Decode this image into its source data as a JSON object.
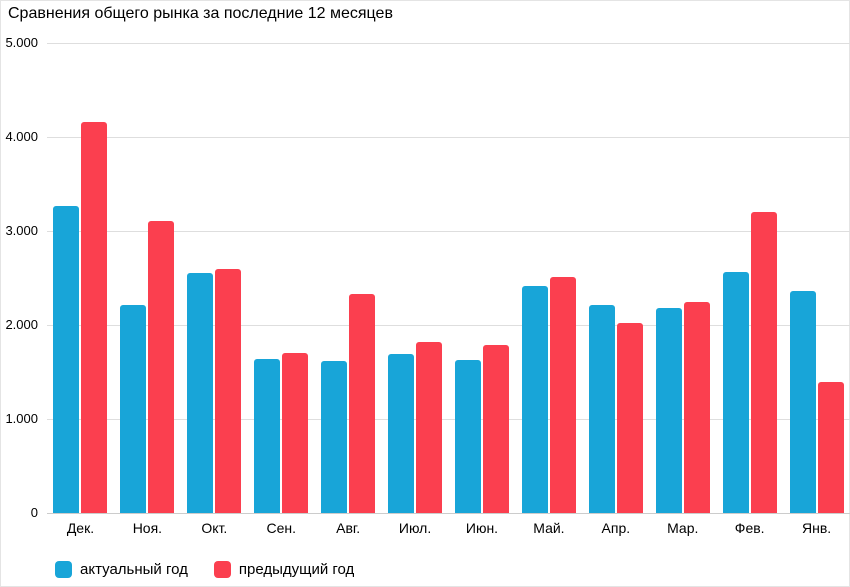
{
  "colors": {
    "current_year": "#18a5d8",
    "previous_year": "#fb3f4f",
    "gridline": "#dedede",
    "axis_line": "#cccccc",
    "text": "#000000"
  },
  "chart_data": {
    "type": "bar",
    "title": "Сравнения общего рынка за последние 12 месяцев",
    "categories": [
      "Дек.",
      "Ноя.",
      "Окт.",
      "Сен.",
      "Авг.",
      "Июл.",
      "Июн.",
      "Май.",
      "Апр.",
      "Мар.",
      "Фев.",
      "Янв."
    ],
    "series": [
      {
        "name": "актуальный год",
        "color": "#18a5d8",
        "values": [
          3270,
          2210,
          2550,
          1640,
          1620,
          1690,
          1630,
          2420,
          2210,
          2180,
          2560,
          2360
        ]
      },
      {
        "name": "предыдущий год",
        "color": "#fb3f4f",
        "values": [
          4160,
          3110,
          2600,
          1700,
          2330,
          1820,
          1790,
          2510,
          2020,
          2240,
          3200,
          1390
        ]
      }
    ],
    "ylim": [
      0,
      5000
    ],
    "yticks": [
      {
        "label": "5.000",
        "value": 5000
      },
      {
        "label": "4.000",
        "value": 4000
      },
      {
        "label": "3.000",
        "value": 3000
      },
      {
        "label": "2.000",
        "value": 2000
      },
      {
        "label": "1.000",
        "value": 1000
      },
      {
        "label": "0",
        "value": 0
      }
    ],
    "xlabel": "",
    "ylabel": "",
    "grid": true,
    "legend_position": "bottom-left"
  }
}
